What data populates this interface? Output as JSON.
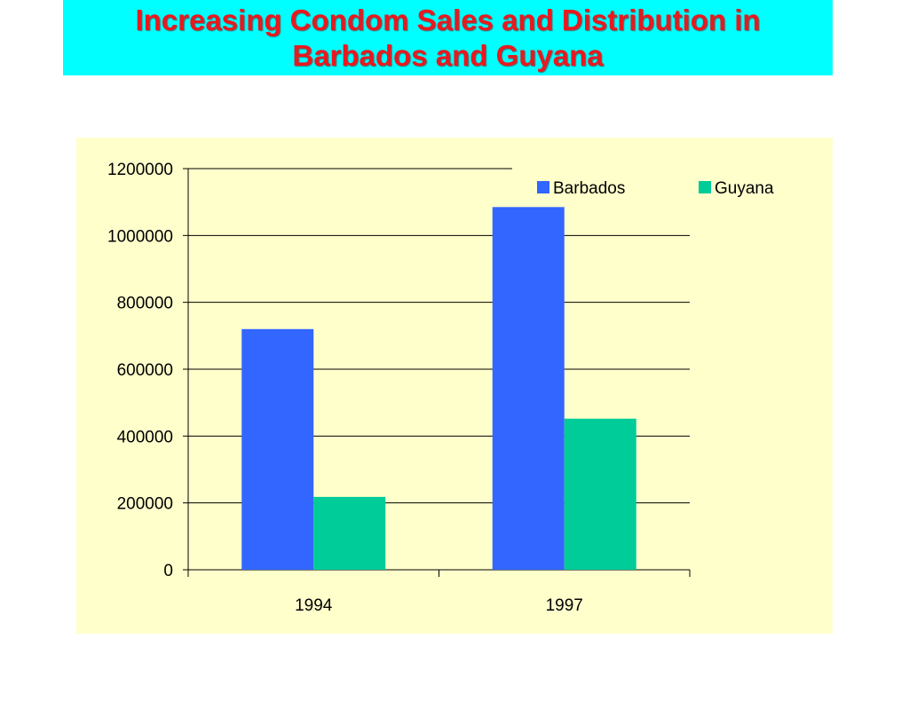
{
  "title": {
    "line1": "Increasing Condom Sales and Distribution in",
    "line2": "Barbados and Guyana"
  },
  "colors": {
    "title_bg": "#00ffff",
    "title_text": "#e8191f",
    "chart_bg": "#ffffcc",
    "barbados": "#3366ff",
    "guyana": "#00cc99"
  },
  "chart_data": {
    "type": "bar",
    "categories": [
      "1994",
      "1997"
    ],
    "series": [
      {
        "name": "Barbados",
        "values": [
          720000,
          1085000
        ]
      },
      {
        "name": "Guyana",
        "values": [
          218000,
          452000
        ]
      }
    ],
    "ylim": [
      0,
      1200000
    ],
    "yticks": [
      "0",
      "200000",
      "400000",
      "600000",
      "800000",
      "1000000",
      "1200000"
    ],
    "xlabel": "",
    "ylabel": "",
    "grid": true,
    "legend_position": "top-right"
  }
}
